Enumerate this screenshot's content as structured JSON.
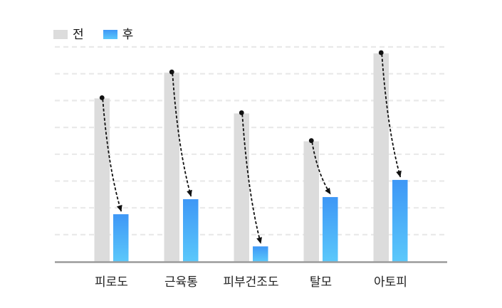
{
  "legend": {
    "items": [
      {
        "key": "before",
        "label": "전"
      },
      {
        "key": "after",
        "label": "후"
      }
    ]
  },
  "chart_data": {
    "type": "bar",
    "categories": [
      "피로도",
      "근육통",
      "피부건조도",
      "탈모",
      "아토피"
    ],
    "series": [
      {
        "name": "전",
        "values": [
          76,
          88,
          69,
          56,
          97
        ]
      },
      {
        "name": "후",
        "values": [
          22,
          29,
          7,
          30,
          38
        ]
      }
    ],
    "title": "",
    "xlabel": "",
    "ylabel": "",
    "ylim": [
      0,
      100
    ],
    "grid": {
      "visible": true,
      "count": 8,
      "style": "dashed",
      "orientation": "horizontal"
    },
    "legend_position": "top-left",
    "y_tick_labels": [],
    "annotations": [
      {
        "type": "arrow",
        "style": "dashed",
        "per_category": true,
        "from": "top of 전 bar (black dot)",
        "to": "top of 후 bar (solid arrowhead)"
      }
    ]
  },
  "colors": {
    "background": "#ffffff",
    "before_bar": "#dcdcdc",
    "after_bar_top": "#3e97f6",
    "after_bar_bottom": "#5bc8fb",
    "gridline": "#e9e9e9",
    "axis": "#9b9b9b",
    "arrow": "#111111",
    "dot": "#111111",
    "label_text": "#1f1f1f",
    "legend_text": "#111111"
  }
}
